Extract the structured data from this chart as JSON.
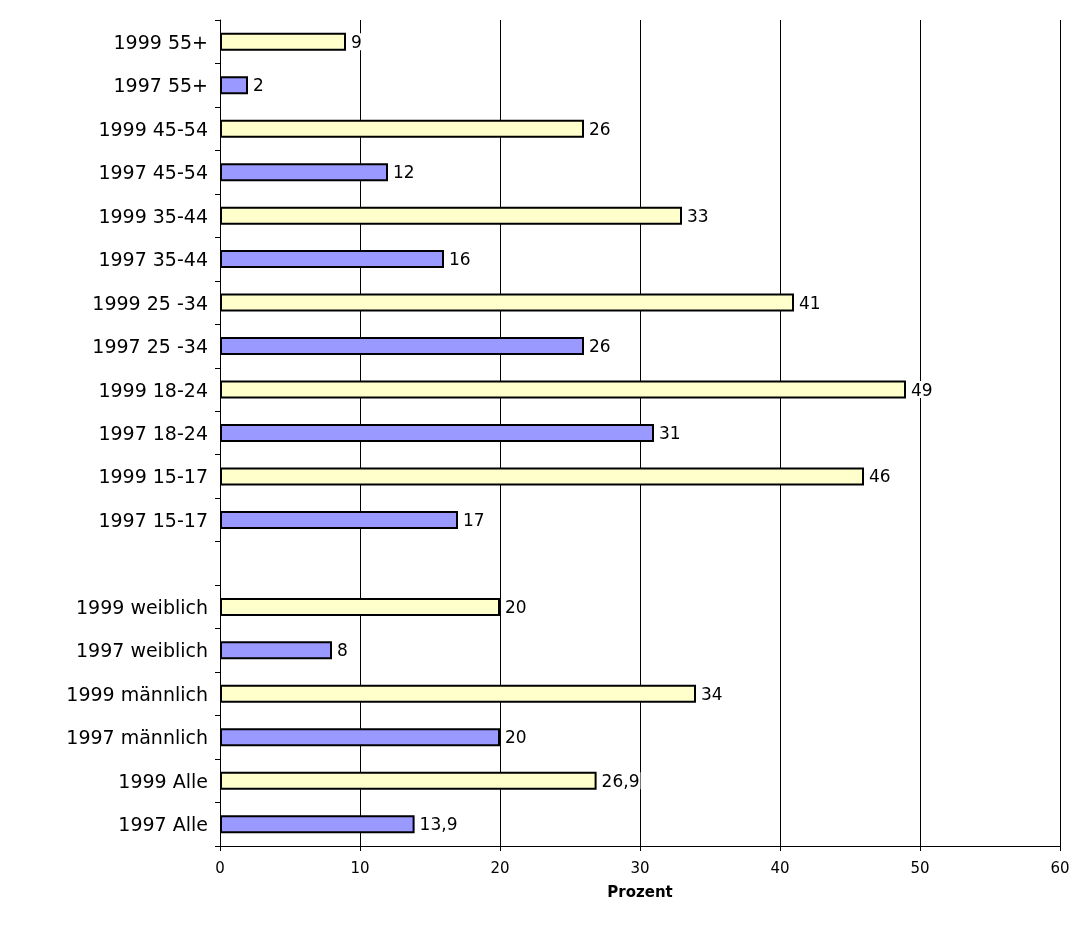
{
  "chart_data": {
    "type": "bar",
    "orientation": "horizontal",
    "xlabel": "Prozent",
    "categories": [
      "1999 55+",
      "1997 55+",
      "1999 45-54",
      "1997 45-54",
      "1999 35-44",
      "1997 35-44",
      "1999 25 -34",
      "1997 25 -34",
      "1999 18-24",
      "1997 18-24",
      "1999 15-17",
      "1997 15-17",
      null,
      "1999 weiblich",
      "1997 weiblich",
      "1999 männlich",
      "1997 männlich",
      "1999 Alle",
      "1997 Alle"
    ],
    "values": [
      9,
      2,
      26,
      12,
      33,
      16,
      41,
      26,
      49,
      31,
      46,
      17,
      null,
      20,
      8,
      34,
      20,
      26.9,
      13.9
    ],
    "value_labels": [
      "9",
      "2",
      "26",
      "12",
      "33",
      "16",
      "41",
      "26",
      "49",
      "31",
      "46",
      "17",
      null,
      "20",
      "8",
      "34",
      "20",
      "26,9",
      "13,9"
    ],
    "colors": [
      "#ffffcc",
      "#9999ff",
      "#ffffcc",
      "#9999ff",
      "#ffffcc",
      "#9999ff",
      "#ffffcc",
      "#9999ff",
      "#ffffcc",
      "#9999ff",
      "#ffffcc",
      "#9999ff",
      "#ffffcc",
      "#ffffcc",
      "#9999ff",
      "#ffffcc",
      "#9999ff",
      "#ffffcc",
      "#9999ff"
    ],
    "xlim": [
      0,
      60
    ],
    "xticks": [
      0,
      10,
      20,
      30,
      40,
      50,
      60
    ],
    "grid": "x"
  }
}
